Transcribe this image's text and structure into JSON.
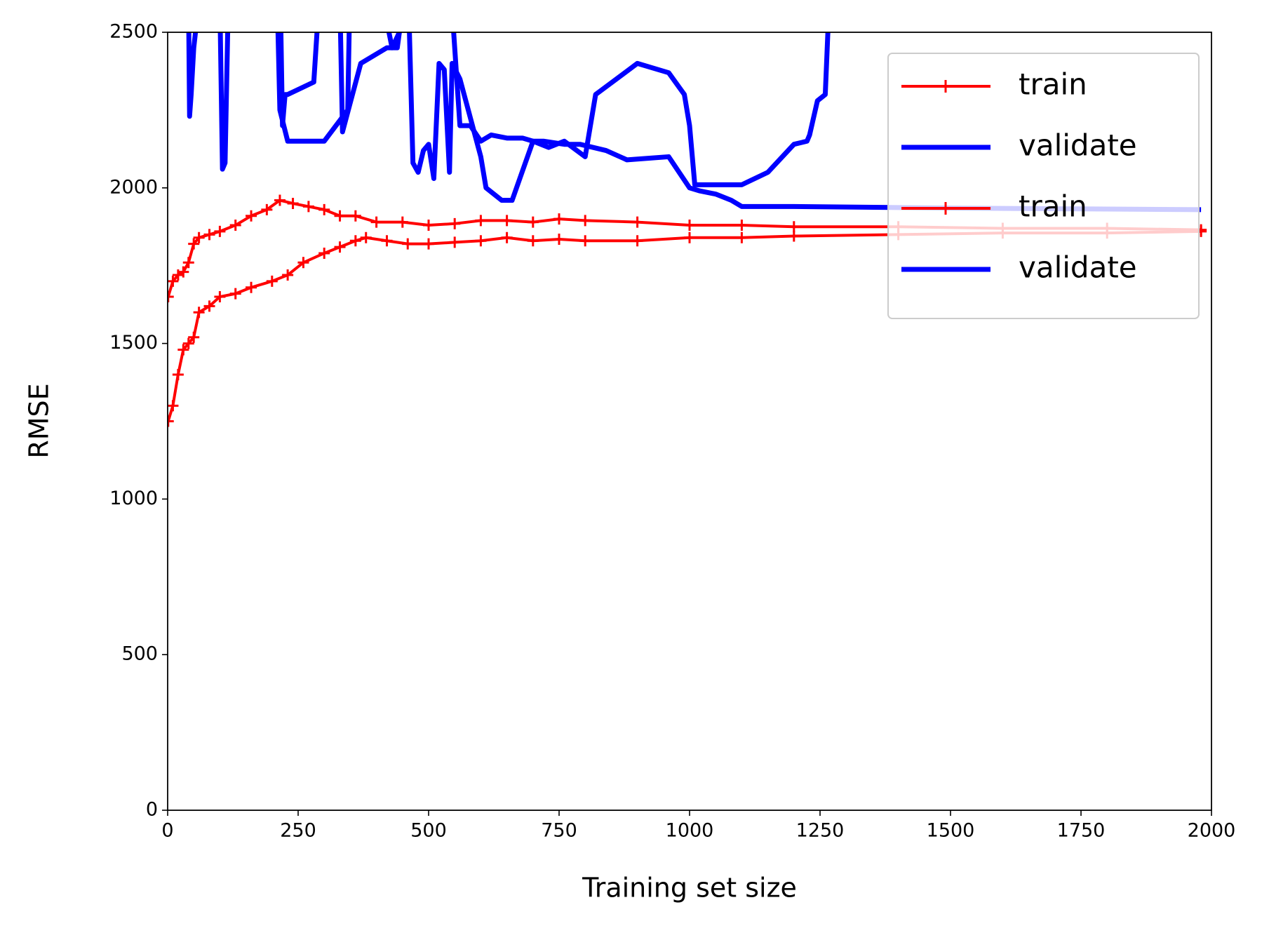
{
  "chart_data": {
    "type": "line",
    "xlabel": "Training set size",
    "ylabel": "RMSE",
    "xlim": [
      0,
      2000
    ],
    "ylim": [
      0,
      2500
    ],
    "xticks": [
      0,
      250,
      500,
      750,
      1000,
      1250,
      1500,
      1750,
      2000
    ],
    "yticks": [
      0,
      500,
      1000,
      1500,
      2000,
      2500
    ],
    "legend": "upper right",
    "series": [
      {
        "name": "train",
        "color": "#ff0000",
        "marker": "+",
        "x": [
          1,
          10,
          20,
          30,
          40,
          50,
          60,
          80,
          100,
          130,
          160,
          190,
          215,
          240,
          270,
          300,
          330,
          360,
          400,
          450,
          500,
          550,
          600,
          650,
          700,
          750,
          800,
          900,
          1000,
          1100,
          1200,
          1400,
          1600,
          1800,
          1980
        ],
        "values": [
          1650,
          1700,
          1720,
          1730,
          1760,
          1820,
          1840,
          1850,
          1860,
          1880,
          1910,
          1930,
          1960,
          1950,
          1940,
          1930,
          1910,
          1910,
          1890,
          1890,
          1880,
          1885,
          1895,
          1895,
          1890,
          1900,
          1895,
          1890,
          1880,
          1880,
          1875,
          1875,
          1870,
          1870,
          1865
        ]
      },
      {
        "name": "validate",
        "color": "#0000ff",
        "x": [
          1,
          40,
          42,
          45,
          50,
          60,
          100,
          105,
          110,
          115,
          150,
          180,
          215,
          220,
          225,
          230,
          280,
          290,
          330,
          335,
          370,
          420,
          440,
          460,
          470,
          480,
          490,
          500,
          510,
          520,
          530,
          540,
          545,
          560,
          600,
          610,
          640,
          660,
          700,
          720,
          760,
          790,
          840,
          880,
          960,
          1000,
          1020,
          1050,
          1080,
          1100,
          1200,
          1500,
          1980
        ],
        "values": [
          2700,
          2600,
          2230,
          2300,
          2450,
          2600,
          2600,
          2060,
          2080,
          2500,
          2600,
          2700,
          2700,
          2200,
          2300,
          2300,
          2340,
          2600,
          2600,
          2180,
          2400,
          2450,
          2450,
          2700,
          2080,
          2050,
          2120,
          2140,
          2030,
          2400,
          2380,
          2050,
          2400,
          2350,
          2100,
          2000,
          1960,
          1960,
          2150,
          2150,
          2140,
          2140,
          2120,
          2090,
          2100,
          2000,
          1990,
          1980,
          1960,
          1940,
          1940,
          1935,
          1930
        ]
      },
      {
        "name": "train",
        "color": "#ff0000",
        "marker": "+",
        "x": [
          1,
          10,
          20,
          30,
          40,
          50,
          60,
          80,
          100,
          130,
          160,
          200,
          230,
          260,
          300,
          330,
          360,
          380,
          420,
          460,
          500,
          550,
          600,
          650,
          700,
          750,
          800,
          900,
          1000,
          1100,
          1200,
          1400,
          1600,
          1800,
          1980
        ],
        "values": [
          1250,
          1300,
          1400,
          1480,
          1500,
          1520,
          1600,
          1620,
          1650,
          1660,
          1680,
          1700,
          1720,
          1760,
          1790,
          1810,
          1830,
          1840,
          1830,
          1820,
          1820,
          1825,
          1830,
          1840,
          1830,
          1835,
          1830,
          1830,
          1840,
          1840,
          1845,
          1850,
          1855,
          1855,
          1860
        ]
      },
      {
        "name": "validate",
        "color": "#0000ff",
        "x": [
          1,
          180,
          210,
          215,
          230,
          300,
          345,
          350,
          400,
          430,
          500,
          540,
          560,
          580,
          600,
          620,
          650,
          680,
          700,
          730,
          760,
          800,
          820,
          860,
          900,
          960,
          990,
          1000,
          1010,
          1040,
          1100,
          1150,
          1200,
          1225,
          1230,
          1245,
          1260,
          1270
        ],
        "values": [
          2700,
          2700,
          2600,
          2250,
          2150,
          2150,
          2250,
          2700,
          2700,
          2450,
          2700,
          2700,
          2200,
          2200,
          2150,
          2170,
          2160,
          2160,
          2150,
          2130,
          2150,
          2100,
          2300,
          2350,
          2400,
          2370,
          2300,
          2200,
          2010,
          2010,
          2010,
          2050,
          2140,
          2150,
          2170,
          2280,
          2300,
          2700
        ]
      }
    ]
  }
}
